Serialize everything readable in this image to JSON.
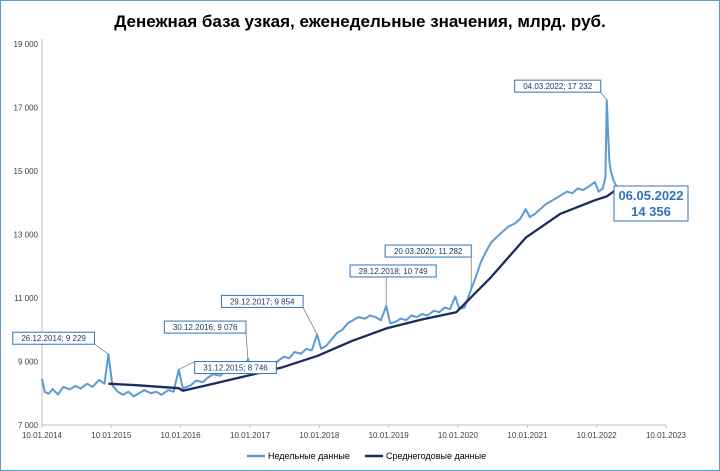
{
  "chart_data": {
    "type": "line",
    "title": "Денежная база узкая, еженедельные значения, млрд. руб.",
    "xlabel": "",
    "ylabel": "",
    "ylim": [
      7000,
      19000
    ],
    "yticks": [
      7000,
      9000,
      11000,
      13000,
      15000,
      17000,
      19000
    ],
    "ytick_labels": [
      "7 000",
      "9 000",
      "11 000",
      "13 000",
      "15 000",
      "17 000",
      "19 000"
    ],
    "xlim": [
      "2014-01-10",
      "2023-01-10"
    ],
    "xtick_labels": [
      "10.01.2014",
      "10.01.2015",
      "10.01.2016",
      "10.01.2017",
      "10.01.2018",
      "10.01.2019",
      "10.01.2020",
      "10.01.2021",
      "10.01.2022",
      "10.01.2023"
    ],
    "grid": false,
    "legend_position": "bottom",
    "colors": {
      "weekly": "#5b9bd5",
      "average": "#1f2a5c",
      "annotation": "#2e75b6"
    },
    "series": [
      {
        "name": "Недельные данные",
        "points": [
          [
            "2014-01-10",
            8450
          ],
          [
            "2014-01-24",
            8050
          ],
          [
            "2014-02-14",
            7980
          ],
          [
            "2014-03-07",
            8130
          ],
          [
            "2014-04-04",
            7960
          ],
          [
            "2014-05-02",
            8200
          ],
          [
            "2014-06-06",
            8120
          ],
          [
            "2014-07-04",
            8230
          ],
          [
            "2014-08-01",
            8150
          ],
          [
            "2014-09-05",
            8300
          ],
          [
            "2014-10-03",
            8200
          ],
          [
            "2014-11-07",
            8420
          ],
          [
            "2014-12-05",
            8300
          ],
          [
            "2014-12-26",
            9229
          ],
          [
            "2015-01-16",
            8250
          ],
          [
            "2015-02-13",
            8050
          ],
          [
            "2015-03-13",
            7950
          ],
          [
            "2015-04-10",
            8050
          ],
          [
            "2015-05-08",
            7900
          ],
          [
            "2015-06-05",
            8000
          ],
          [
            "2015-07-03",
            8100
          ],
          [
            "2015-08-07",
            8000
          ],
          [
            "2015-09-04",
            8050
          ],
          [
            "2015-10-02",
            7950
          ],
          [
            "2015-11-06",
            8100
          ],
          [
            "2015-12-04",
            8050
          ],
          [
            "2015-12-31",
            8746
          ],
          [
            "2016-01-22",
            8150
          ],
          [
            "2016-03-04",
            8250
          ],
          [
            "2016-04-01",
            8400
          ],
          [
            "2016-05-06",
            8350
          ],
          [
            "2016-06-03",
            8500
          ],
          [
            "2016-07-01",
            8600
          ],
          [
            "2016-08-05",
            8550
          ],
          [
            "2016-09-02",
            8700
          ],
          [
            "2016-10-07",
            8650
          ],
          [
            "2016-11-04",
            8800
          ],
          [
            "2016-12-02",
            8700
          ],
          [
            "2016-12-30",
            9076
          ],
          [
            "2017-01-20",
            8600
          ],
          [
            "2017-03-03",
            8700
          ],
          [
            "2017-04-07",
            8900
          ],
          [
            "2017-05-05",
            8800
          ],
          [
            "2017-06-02",
            9000
          ],
          [
            "2017-07-07",
            9150
          ],
          [
            "2017-08-04",
            9100
          ],
          [
            "2017-09-01",
            9300
          ],
          [
            "2017-10-06",
            9250
          ],
          [
            "2017-11-03",
            9400
          ],
          [
            "2017-12-01",
            9350
          ],
          [
            "2017-12-29",
            9854
          ],
          [
            "2018-01-19",
            9400
          ],
          [
            "2018-02-16",
            9500
          ],
          [
            "2018-03-16",
            9700
          ],
          [
            "2018-04-13",
            9900
          ],
          [
            "2018-05-11",
            10000
          ],
          [
            "2018-06-08",
            10200
          ],
          [
            "2018-07-06",
            10300
          ],
          [
            "2018-08-03",
            10400
          ],
          [
            "2018-09-07",
            10350
          ],
          [
            "2018-10-05",
            10450
          ],
          [
            "2018-11-02",
            10400
          ],
          [
            "2018-11-30",
            10300
          ],
          [
            "2018-12-28",
            10749
          ],
          [
            "2019-01-18",
            10200
          ],
          [
            "2019-02-15",
            10250
          ],
          [
            "2019-03-15",
            10350
          ],
          [
            "2019-04-12",
            10300
          ],
          [
            "2019-05-10",
            10450
          ],
          [
            "2019-06-07",
            10400
          ],
          [
            "2019-07-05",
            10500
          ],
          [
            "2019-08-02",
            10450
          ],
          [
            "2019-09-06",
            10600
          ],
          [
            "2019-10-04",
            10550
          ],
          [
            "2019-11-01",
            10700
          ],
          [
            "2019-11-29",
            10650
          ],
          [
            "2019-12-27",
            11050
          ],
          [
            "2020-01-17",
            10650
          ],
          [
            "2020-02-14",
            10700
          ],
          [
            "2020-03-20",
            11282
          ],
          [
            "2020-04-10",
            11600
          ],
          [
            "2020-05-08",
            12100
          ],
          [
            "2020-06-05",
            12450
          ],
          [
            "2020-07-03",
            12750
          ],
          [
            "2020-08-07",
            12950
          ],
          [
            "2020-09-04",
            13100
          ],
          [
            "2020-10-02",
            13250
          ],
          [
            "2020-11-06",
            13350
          ],
          [
            "2020-12-04",
            13500
          ],
          [
            "2021-01-01",
            13800
          ],
          [
            "2021-01-22",
            13550
          ],
          [
            "2021-02-19",
            13650
          ],
          [
            "2021-03-19",
            13800
          ],
          [
            "2021-04-16",
            13950
          ],
          [
            "2021-05-14",
            14050
          ],
          [
            "2021-06-11",
            14150
          ],
          [
            "2021-07-09",
            14250
          ],
          [
            "2021-08-06",
            14350
          ],
          [
            "2021-09-03",
            14300
          ],
          [
            "2021-10-01",
            14450
          ],
          [
            "2021-10-29",
            14400
          ],
          [
            "2021-11-26",
            14500
          ],
          [
            "2021-12-31",
            14650
          ],
          [
            "2022-01-21",
            14350
          ],
          [
            "2022-02-11",
            14450
          ],
          [
            "2022-02-25",
            14800
          ],
          [
            "2022-03-04",
            17232
          ],
          [
            "2022-03-11",
            16200
          ],
          [
            "2022-03-18",
            15300
          ],
          [
            "2022-03-25",
            15000
          ],
          [
            "2022-04-08",
            14700
          ],
          [
            "2022-04-22",
            14550
          ],
          [
            "2022-05-06",
            14356
          ]
        ]
      },
      {
        "name": "Среднегодовые данные",
        "points": [
          [
            "2014-12-26",
            8300
          ],
          [
            "2015-06-01",
            8250
          ],
          [
            "2015-12-31",
            8160
          ],
          [
            "2016-01-22",
            8080
          ],
          [
            "2016-07-01",
            8300
          ],
          [
            "2017-01-01",
            8560
          ],
          [
            "2017-07-01",
            8820
          ],
          [
            "2018-01-01",
            9180
          ],
          [
            "2018-07-01",
            9650
          ],
          [
            "2019-01-01",
            10050
          ],
          [
            "2019-07-01",
            10320
          ],
          [
            "2020-01-01",
            10550
          ],
          [
            "2020-07-01",
            11650
          ],
          [
            "2021-01-01",
            12900
          ],
          [
            "2021-07-01",
            13650
          ],
          [
            "2022-01-01",
            14080
          ],
          [
            "2022-03-04",
            14200
          ],
          [
            "2022-05-06",
            14470
          ]
        ]
      }
    ],
    "annotations": [
      {
        "x": "2014-12-26",
        "y": 9229,
        "label": "26.12.2014; 9 229"
      },
      {
        "x": "2015-12-31",
        "y": 8746,
        "label": "31.12.2015; 8 746"
      },
      {
        "x": "2016-12-30",
        "y": 9076,
        "label": "30.12.2016; 9 076"
      },
      {
        "x": "2017-12-29",
        "y": 9854,
        "label": "29.12.2017; 9 854"
      },
      {
        "x": "2018-12-28",
        "y": 10749,
        "label": "28.12.2018; 10 749"
      },
      {
        "x": "2020-03-20",
        "y": 11282,
        "label": "20.03.2020; 11 282"
      },
      {
        "x": "2022-03-04",
        "y": 17232,
        "label": "04.03.2022; 17 232"
      }
    ],
    "callout": {
      "x": "2022-05-06",
      "y": 14356,
      "date_label": "06.05.2022",
      "value_label": "14 356"
    }
  }
}
